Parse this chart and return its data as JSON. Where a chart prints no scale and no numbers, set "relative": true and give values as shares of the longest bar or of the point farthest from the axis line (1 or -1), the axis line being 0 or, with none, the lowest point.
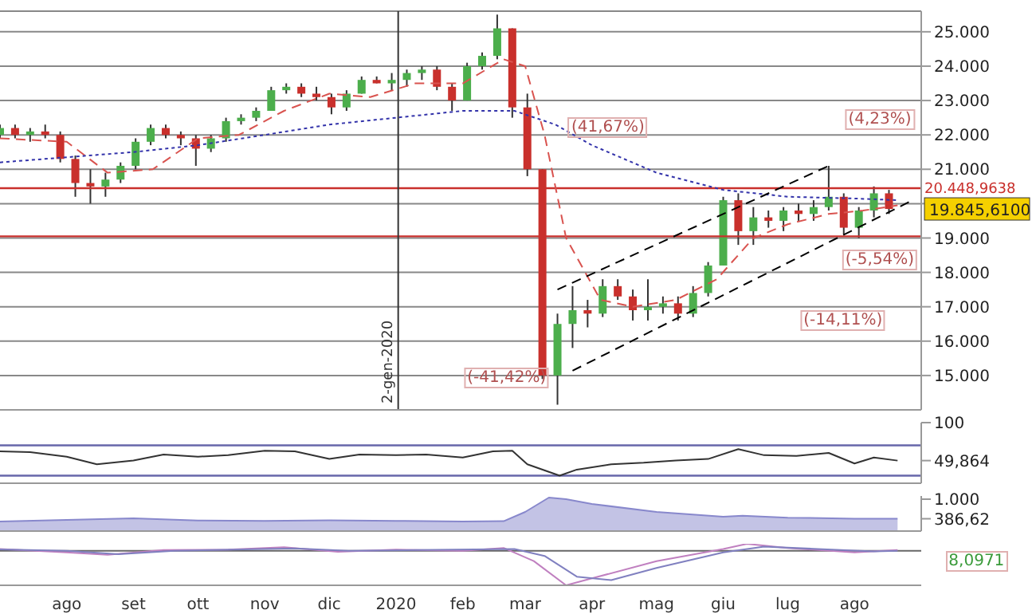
{
  "chart_data": [
    {
      "type": "candlestick",
      "x": [
        "2019-07-01",
        "2019-07-08",
        "2019-07-15",
        "2019-07-22",
        "2019-07-29",
        "2019-08-05",
        "2019-08-12",
        "2019-08-19",
        "2019-08-26",
        "2019-09-02",
        "2019-09-09",
        "2019-09-16",
        "2019-09-23",
        "2019-09-30",
        "2019-10-07",
        "2019-10-14",
        "2019-10-21",
        "2019-10-28",
        "2019-11-04",
        "2019-11-11",
        "2019-11-18",
        "2019-11-25",
        "2019-12-02",
        "2019-12-09",
        "2019-12-16",
        "2019-12-23",
        "2019-12-30",
        "2020-01-06",
        "2020-01-13",
        "2020-01-20",
        "2020-01-27",
        "2020-02-03",
        "2020-02-10",
        "2020-02-17",
        "2020-02-24",
        "2020-03-02",
        "2020-03-09",
        "2020-03-16",
        "2020-03-23",
        "2020-03-30",
        "2020-04-06",
        "2020-04-13",
        "2020-04-20",
        "2020-04-27",
        "2020-05-04",
        "2020-05-11",
        "2020-05-18",
        "2020-05-25",
        "2020-06-01",
        "2020-06-08",
        "2020-06-15",
        "2020-06-22",
        "2020-06-29",
        "2020-07-06",
        "2020-07-13",
        "2020-07-20",
        "2020-07-27",
        "2020-08-03",
        "2020-08-10",
        "2020-08-17"
      ],
      "ohlc": [
        [
          22000,
          22300,
          21900,
          22200
        ],
        [
          22200,
          22300,
          21900,
          22000
        ],
        [
          22000,
          22200,
          21800,
          22100
        ],
        [
          22100,
          22300,
          21900,
          22000
        ],
        [
          22000,
          22100,
          21200,
          21300
        ],
        [
          21300,
          21400,
          20200,
          20600
        ],
        [
          20600,
          21000,
          20000,
          20500
        ],
        [
          20500,
          20900,
          20200,
          20700
        ],
        [
          20700,
          21200,
          20600,
          21100
        ],
        [
          21100,
          21900,
          21000,
          21800
        ],
        [
          21800,
          22300,
          21700,
          22200
        ],
        [
          22200,
          22300,
          21900,
          22000
        ],
        [
          22000,
          22100,
          21700,
          21900
        ],
        [
          21900,
          22000,
          21100,
          21600
        ],
        [
          21600,
          22000,
          21500,
          21900
        ],
        [
          21900,
          22500,
          21800,
          22400
        ],
        [
          22400,
          22600,
          22300,
          22500
        ],
        [
          22500,
          22800,
          22400,
          22700
        ],
        [
          22700,
          23400,
          22700,
          23300
        ],
        [
          23300,
          23500,
          23200,
          23400
        ],
        [
          23400,
          23500,
          23100,
          23200
        ],
        [
          23200,
          23400,
          23000,
          23100
        ],
        [
          23100,
          23200,
          22600,
          22800
        ],
        [
          22800,
          23300,
          22700,
          23200
        ],
        [
          23200,
          23700,
          23200,
          23600
        ],
        [
          23600,
          23700,
          23500,
          23500
        ],
        [
          23500,
          23800,
          23300,
          23600
        ],
        [
          23600,
          23900,
          23400,
          23800
        ],
        [
          23800,
          24000,
          23600,
          23900
        ],
        [
          23900,
          24000,
          23300,
          23400
        ],
        [
          23400,
          23500,
          22700,
          23000
        ],
        [
          23000,
          24100,
          23000,
          24000
        ],
        [
          24000,
          24400,
          23900,
          24300
        ],
        [
          24300,
          25500,
          24200,
          25100
        ],
        [
          25100,
          25100,
          22500,
          22800
        ],
        [
          22800,
          23200,
          20800,
          21000
        ],
        [
          21000,
          21000,
          14900,
          15000
        ],
        [
          15000,
          16800,
          14150,
          16500
        ],
        [
          16500,
          17600,
          15800,
          16900
        ],
        [
          16900,
          17200,
          16400,
          16800
        ],
        [
          16800,
          17800,
          16700,
          17600
        ],
        [
          17600,
          17800,
          17200,
          17300
        ],
        [
          17300,
          17500,
          16600,
          16900
        ],
        [
          16900,
          17800,
          16600,
          17000
        ],
        [
          17000,
          17300,
          16800,
          17100
        ],
        [
          17100,
          17300,
          16600,
          16800
        ],
        [
          16800,
          17600,
          16700,
          17400
        ],
        [
          17400,
          18300,
          17300,
          18200
        ],
        [
          18200,
          20200,
          18200,
          20100
        ],
        [
          20100,
          20300,
          18800,
          19200
        ],
        [
          19200,
          19900,
          18800,
          19600
        ],
        [
          19600,
          19800,
          19300,
          19500
        ],
        [
          19500,
          19900,
          19200,
          19800
        ],
        [
          19800,
          20000,
          19500,
          19700
        ],
        [
          19700,
          20100,
          19500,
          19900
        ],
        [
          19900,
          21100,
          19800,
          20200
        ],
        [
          20200,
          20300,
          19100,
          19300
        ],
        [
          19300,
          19900,
          19000,
          19800
        ],
        [
          19800,
          20500,
          19600,
          20300
        ],
        [
          20300,
          20400,
          19700,
          19845.61
        ]
      ],
      "colors": [
        "#4cae4c",
        "#c9302c",
        "#4cae4c",
        "#c9302c",
        "#c9302c",
        "#c9302c",
        "#c9302c",
        "#4cae4c",
        "#4cae4c",
        "#4cae4c",
        "#4cae4c",
        "#c9302c",
        "#c9302c",
        "#c9302c",
        "#4cae4c",
        "#4cae4c",
        "#4cae4c",
        "#4cae4c",
        "#4cae4c",
        "#4cae4c",
        "#c9302c",
        "#c9302c",
        "#c9302c",
        "#4cae4c",
        "#4cae4c",
        "#c9302c",
        "#4cae4c",
        "#4cae4c",
        "#4cae4c",
        "#c9302c",
        "#c9302c",
        "#4cae4c",
        "#4cae4c",
        "#4cae4c",
        "#c9302c",
        "#c9302c",
        "#c9302c",
        "#4cae4c",
        "#4cae4c",
        "#c9302c",
        "#4cae4c",
        "#c9302c",
        "#c9302c",
        "#4cae4c",
        "#4cae4c",
        "#c9302c",
        "#4cae4c",
        "#4cae4c",
        "#4cae4c",
        "#c9302c",
        "#4cae4c",
        "#c9302c",
        "#4cae4c",
        "#c9302c",
        "#4cae4c",
        "#4cae4c",
        "#c9302c",
        "#4cae4c",
        "#4cae4c",
        "#c9302c"
      ],
      "series": [
        {
          "type": "line",
          "color": "#d9534f",
          "line_style": "dashed",
          "x": [
            "2019-07-01",
            "2019-08-01",
            "2019-08-20",
            "2019-09-10",
            "2019-10-01",
            "2019-10-20",
            "2019-11-10",
            "2019-12-01",
            "2019-12-20",
            "2020-01-10",
            "2020-02-01",
            "2020-02-20",
            "2020-03-01",
            "2020-03-10",
            "2020-03-20",
            "2020-04-05",
            "2020-04-20",
            "2020-05-10",
            "2020-05-29",
            "2020-06-15",
            "2020-07-01",
            "2020-07-20",
            "2020-08-05",
            "2020-08-21"
          ],
          "values": [
            21900,
            21800,
            20900,
            21000,
            21900,
            22000,
            22700,
            23200,
            23100,
            23500,
            23500,
            24200,
            24000,
            22000,
            19000,
            17200,
            17000,
            17200,
            17800,
            19000,
            19400,
            19700,
            19800,
            19950
          ]
        },
        {
          "type": "line",
          "color": "#3333aa",
          "line_style": "dotted",
          "x": [
            "2019-07-01",
            "2019-09-01",
            "2019-10-01",
            "2019-11-01",
            "2019-12-01",
            "2020-01-01",
            "2020-02-01",
            "2020-02-25",
            "2020-03-15",
            "2020-04-01",
            "2020-05-01",
            "2020-06-01",
            "2020-07-01",
            "2020-08-01",
            "2020-08-21"
          ],
          "values": [
            21200,
            21500,
            21700,
            22000,
            22300,
            22500,
            22700,
            22700,
            22300,
            21700,
            20900,
            20400,
            20200,
            20150,
            20100
          ]
        },
        {
          "type": "line",
          "color": "#000000",
          "line_style": "dashed",
          "x": [
            "2020-03-16",
            "2020-07-20"
          ],
          "values": [
            17500,
            21100
          ]
        },
        {
          "type": "line",
          "color": "#000000",
          "line_style": "dashed",
          "x": [
            "2020-03-23",
            "2020-08-28"
          ],
          "values": [
            15140,
            20100
          ]
        }
      ],
      "xlim": [
        "2019-07-01",
        "2020-09-01"
      ],
      "ylim": [
        14000,
        25600
      ],
      "yticks": [
        {
          "value": 15000,
          "label": "15.000"
        },
        {
          "value": 16000,
          "label": "16.000"
        },
        {
          "value": 17000,
          "label": "17.000"
        },
        {
          "value": 18000,
          "label": "18.000"
        },
        {
          "value": 19000,
          "label": "19.000"
        },
        {
          "value": 20000,
          "label": null
        },
        {
          "value": 21000,
          "label": "21.000"
        },
        {
          "value": 22000,
          "label": "22.000"
        },
        {
          "value": 23000,
          "label": "23.000"
        },
        {
          "value": 24000,
          "label": "24.000"
        },
        {
          "value": 25000,
          "label": "25.000"
        }
      ],
      "tick_labels": "y",
      "grid": "y",
      "ref_lines": [
        {
          "axis": "y",
          "value": 20448.9638,
          "label": "20.448,9638",
          "color": "#c9302c"
        },
        {
          "axis": "y",
          "value": 19050,
          "label": null,
          "color": "#c9302c"
        },
        {
          "axis": "x",
          "value": "2020-01-02",
          "label": "2-gen-2020",
          "color": "#333333"
        }
      ],
      "annotations": [
        "(-41,42%)",
        "(41,67%)",
        "(4,23%)",
        "(-5,54%)",
        "(-14,11%)",
        {
          "text": "19.845,6100",
          "x": "2020-08-17",
          "y": 19845.61
        }
      ]
    },
    {
      "type": "line",
      "series": [
        {
          "color": "#333333",
          "x": [
            "2019-07-01",
            "2019-07-15",
            "2019-08-01",
            "2019-08-15",
            "2019-09-01",
            "2019-09-15",
            "2019-10-01",
            "2019-10-15",
            "2019-11-01",
            "2019-11-15",
            "2019-12-01",
            "2019-12-15",
            "2020-01-01",
            "2020-01-15",
            "2020-02-01",
            "2020-02-15",
            "2020-02-24",
            "2020-03-02",
            "2020-03-12",
            "2020-03-17",
            "2020-03-25",
            "2020-04-10",
            "2020-04-25",
            "2020-05-10",
            "2020-05-25",
            "2020-06-08",
            "2020-06-20",
            "2020-07-05",
            "2020-07-20",
            "2020-08-01",
            "2020-08-10",
            "2020-08-21"
          ],
          "values": [
            62,
            61,
            55,
            45,
            50,
            58,
            55,
            57,
            63,
            62,
            52,
            58,
            57,
            58,
            54,
            62,
            63,
            45,
            35,
            30,
            38,
            45,
            47,
            50,
            52,
            65,
            57,
            56,
            60,
            46,
            54,
            49.864
          ]
        }
      ],
      "xlim": [
        "2019-07-01",
        "2020-09-01"
      ],
      "ylim": [
        20,
        100
      ],
      "yticks": [
        100,
        {
          "value": 49.864,
          "label": "49,864"
        }
      ],
      "tick_labels": "y",
      "ref_lines": [
        {
          "axis": "y",
          "value": 70,
          "label": null,
          "color": "#6666aa"
        },
        {
          "axis": "y",
          "value": 30,
          "label": null,
          "color": "#6666aa"
        }
      ]
    },
    {
      "type": "area",
      "series": [
        {
          "color": "#8888cc",
          "x": [
            "2019-07-01",
            "2019-08-01",
            "2019-09-01",
            "2019-10-01",
            "2019-11-01",
            "2019-12-01",
            "2020-01-01",
            "2020-02-01",
            "2020-02-20",
            "2020-03-01",
            "2020-03-12",
            "2020-03-20",
            "2020-04-01",
            "2020-05-01",
            "2020-06-01",
            "2020-06-10",
            "2020-07-01",
            "2020-08-01",
            "2020-08-21"
          ],
          "values": [
            300,
            350,
            400,
            330,
            320,
            340,
            320,
            300,
            310,
            600,
            1050,
            1000,
            850,
            600,
            450,
            480,
            420,
            390,
            386.62
          ]
        }
      ],
      "xlim": [
        "2019-07-01",
        "2020-09-01"
      ],
      "ylim": [
        0,
        1100
      ],
      "yticks": [
        {
          "value": 1000,
          "label": "1.000"
        },
        {
          "value": 386.62,
          "label": "386,62"
        }
      ],
      "tick_labels": "y"
    },
    {
      "type": "line",
      "relative": true,
      "series": [
        {
          "color": "#c080c0",
          "x": [
            "2019-07-01",
            "2019-08-01",
            "2019-08-20",
            "2019-09-15",
            "2019-10-15",
            "2019-11-10",
            "2019-12-05",
            "2020-01-01",
            "2020-02-01",
            "2020-02-20",
            "2020-03-05",
            "2020-03-20",
            "2020-04-01",
            "2020-05-01",
            "2020-06-01",
            "2020-06-12",
            "2020-07-01",
            "2020-08-01",
            "2020-08-21"
          ],
          "values": [
            0.05,
            -0.05,
            -0.12,
            0.02,
            0.03,
            0.1,
            -0.03,
            0.03,
            0,
            0.08,
            -0.3,
            -1,
            -0.8,
            -0.3,
            0.05,
            0.2,
            0.08,
            -0.05,
            0.02
          ]
        },
        {
          "color": "#8080c0",
          "x": [
            "2019-07-01",
            "2019-08-01",
            "2019-08-25",
            "2019-09-20",
            "2019-11-15",
            "2019-12-10",
            "2020-01-10",
            "2020-02-25",
            "2020-03-10",
            "2020-03-25",
            "2020-04-10",
            "2020-05-01",
            "2020-06-01",
            "2020-06-20",
            "2020-07-15",
            "2020-08-10",
            "2020-08-21"
          ],
          "values": [
            0.04,
            0,
            -0.1,
            0,
            0.07,
            0,
            0.02,
            0.05,
            -0.15,
            -0.75,
            -0.85,
            -0.5,
            -0.05,
            0.12,
            0.05,
            -0.02,
            0
          ]
        }
      ],
      "xlim": [
        "2019-07-01",
        "2020-09-01"
      ],
      "xticks": [
        {
          "value": "2019-08-01",
          "label": "ago"
        },
        {
          "value": "2019-09-01",
          "label": "set"
        },
        {
          "value": "2019-10-01",
          "label": "ott"
        },
        {
          "value": "2019-11-01",
          "label": "nov"
        },
        {
          "value": "2019-12-01",
          "label": "dic"
        },
        {
          "value": "2020-01-01",
          "label": "2020"
        },
        {
          "value": "2020-02-01",
          "label": "feb"
        },
        {
          "value": "2020-03-01",
          "label": "mar"
        },
        {
          "value": "2020-04-01",
          "label": "apr"
        },
        {
          "value": "2020-05-01",
          "label": "mag"
        },
        {
          "value": "2020-06-01",
          "label": "giu"
        },
        {
          "value": "2020-07-01",
          "label": "lug"
        },
        {
          "value": "2020-08-01",
          "label": "ago"
        }
      ],
      "tick_labels": "x",
      "annotations": [
        "8,0971"
      ]
    }
  ]
}
